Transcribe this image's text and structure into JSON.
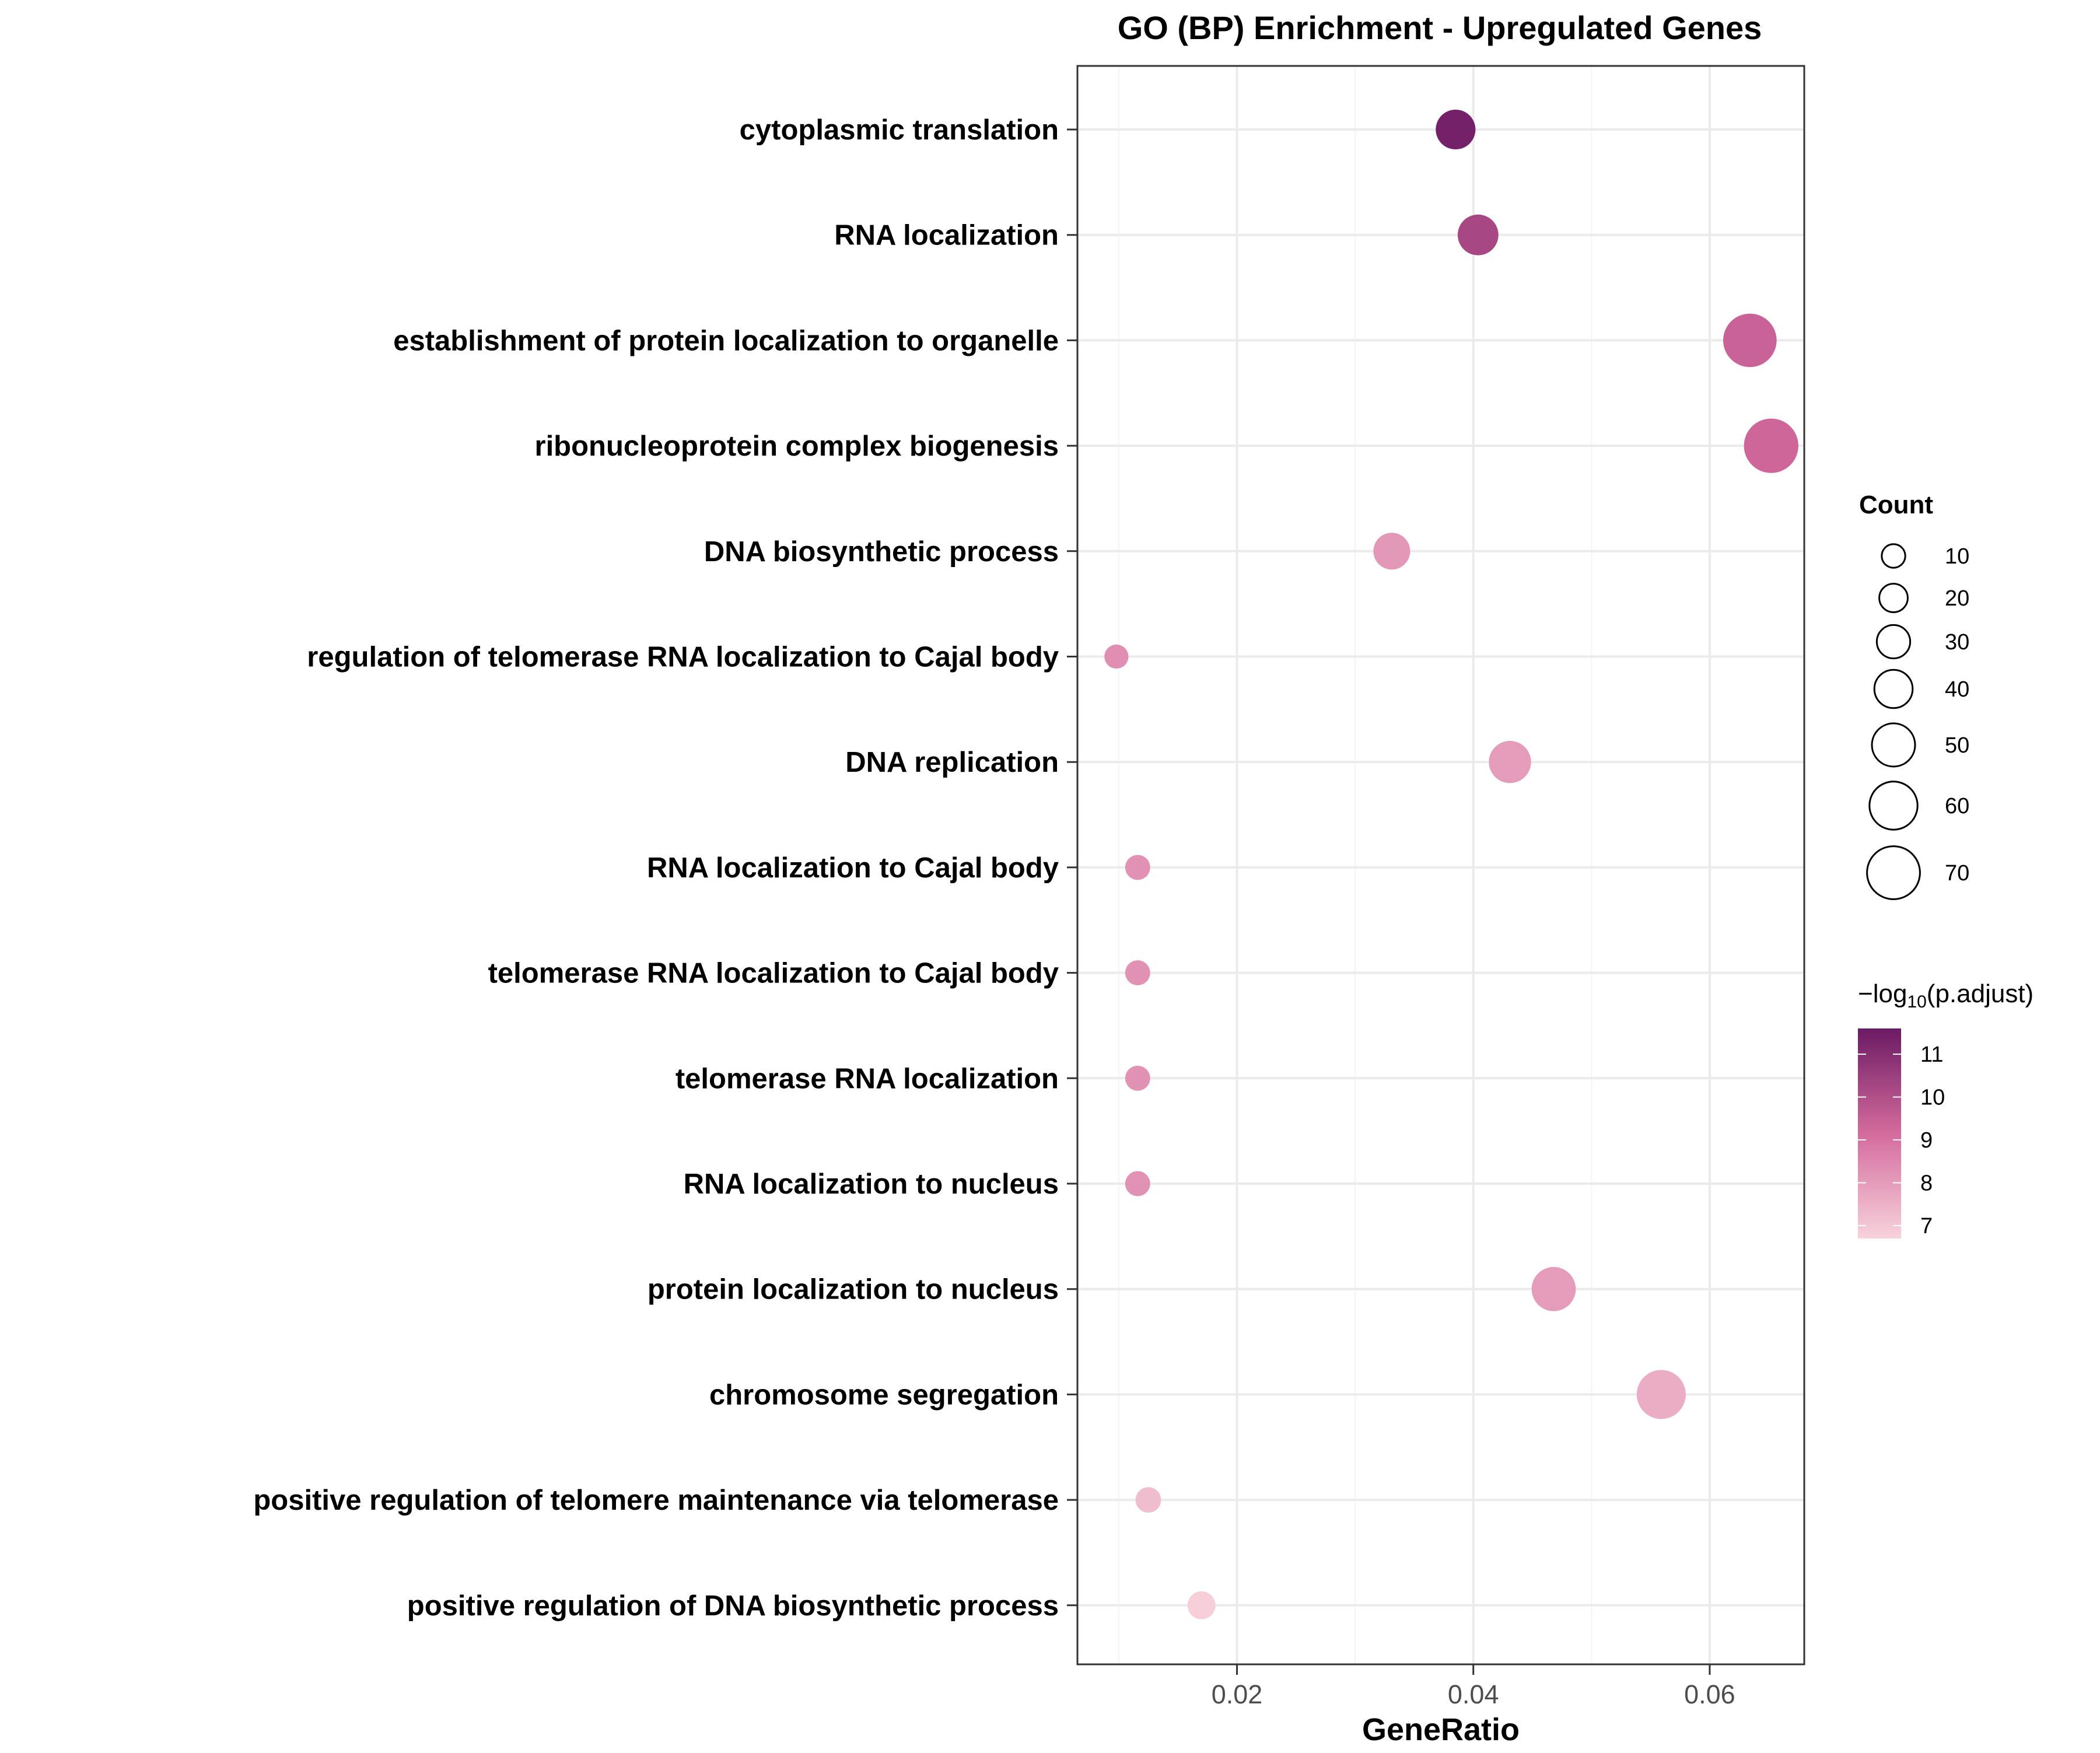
{
  "chart_data": {
    "type": "scatter",
    "title": "GO (BP) Enrichment - Upregulated Genes",
    "xlabel": "GeneRatio",
    "ylabel": "",
    "xlim": [
      0.0065,
      0.068
    ],
    "x_ticks": [
      0.02,
      0.04,
      0.06
    ],
    "x_tick_labels": [
      "0.02",
      "0.04",
      "0.06"
    ],
    "grid": true,
    "categories": [
      "cytoplasmic translation",
      "RNA localization",
      "establishment of protein localization to organelle",
      "ribonucleoprotein complex biogenesis",
      "DNA biosynthetic process",
      "regulation of telomerase RNA localization to Cajal body",
      "DNA replication",
      "RNA localization to Cajal body",
      "telomerase RNA localization to Cajal body",
      "telomerase RNA localization",
      "RNA localization to nucleus",
      "protein localization to nucleus",
      "chromosome segregation",
      "positive regulation of telomere maintenance via telomerase",
      "positive regulation of DNA biosynthetic process"
    ],
    "points": [
      {
        "term": "cytoplasmic translation",
        "gene_ratio": 0.0385,
        "count": 43,
        "neg_log10_padj": 11.4
      },
      {
        "term": "RNA localization",
        "gene_ratio": 0.0404,
        "count": 45,
        "neg_log10_padj": 10.2
      },
      {
        "term": "establishment of protein localization to organelle",
        "gene_ratio": 0.0634,
        "count": 71,
        "neg_log10_padj": 9.4
      },
      {
        "term": "ribonucleoprotein complex biogenesis",
        "gene_ratio": 0.0652,
        "count": 73,
        "neg_log10_padj": 9.3
      },
      {
        "term": "DNA biosynthetic process",
        "gene_ratio": 0.0331,
        "count": 37,
        "neg_log10_padj": 8.1
      },
      {
        "term": "regulation of telomerase RNA localization to Cajal body",
        "gene_ratio": 0.0098,
        "count": 11,
        "neg_log10_padj": 8.3
      },
      {
        "term": "DNA replication",
        "gene_ratio": 0.0431,
        "count": 48,
        "neg_log10_padj": 8.0
      },
      {
        "term": "RNA localization to Cajal body",
        "gene_ratio": 0.0116,
        "count": 13,
        "neg_log10_padj": 8.2
      },
      {
        "term": "telomerase RNA localization to Cajal body",
        "gene_ratio": 0.0116,
        "count": 13,
        "neg_log10_padj": 8.2
      },
      {
        "term": "telomerase RNA localization",
        "gene_ratio": 0.0116,
        "count": 13,
        "neg_log10_padj": 8.2
      },
      {
        "term": "RNA localization to nucleus",
        "gene_ratio": 0.0116,
        "count": 13,
        "neg_log10_padj": 8.2
      },
      {
        "term": "protein localization to nucleus",
        "gene_ratio": 0.0468,
        "count": 52,
        "neg_log10_padj": 8.0
      },
      {
        "term": "chromosome segregation",
        "gene_ratio": 0.0559,
        "count": 62,
        "neg_log10_padj": 7.6
      },
      {
        "term": "positive regulation of telomere maintenance via telomerase",
        "gene_ratio": 0.0125,
        "count": 14,
        "neg_log10_padj": 7.2
      },
      {
        "term": "positive regulation of DNA biosynthetic process",
        "gene_ratio": 0.017,
        "count": 19,
        "neg_log10_padj": 6.8
      }
    ],
    "size_legend": {
      "title": "Count",
      "values": [
        10,
        20,
        30,
        40,
        50,
        60,
        70
      ],
      "labels": [
        "10",
        "20",
        "30",
        "40",
        "50",
        "60",
        "70"
      ]
    },
    "color_legend": {
      "title_prefix": "−log",
      "title_subscript": "10",
      "title_suffix": "(p.adjust)",
      "range": [
        6.7,
        11.6
      ],
      "ticks": [
        7,
        8,
        9,
        10,
        11
      ],
      "tick_labels": [
        "7",
        "8",
        "9",
        "10",
        "11"
      ],
      "color_low": "#f8d3dc",
      "color_mid": "#d46b9d",
      "color_high": "#6b1a64"
    },
    "colors": {
      "panel_border": "#333333",
      "grid_major": "#ebebeb",
      "grid_minor": "#f4f4f4",
      "tick_mark": "#333333"
    }
  }
}
